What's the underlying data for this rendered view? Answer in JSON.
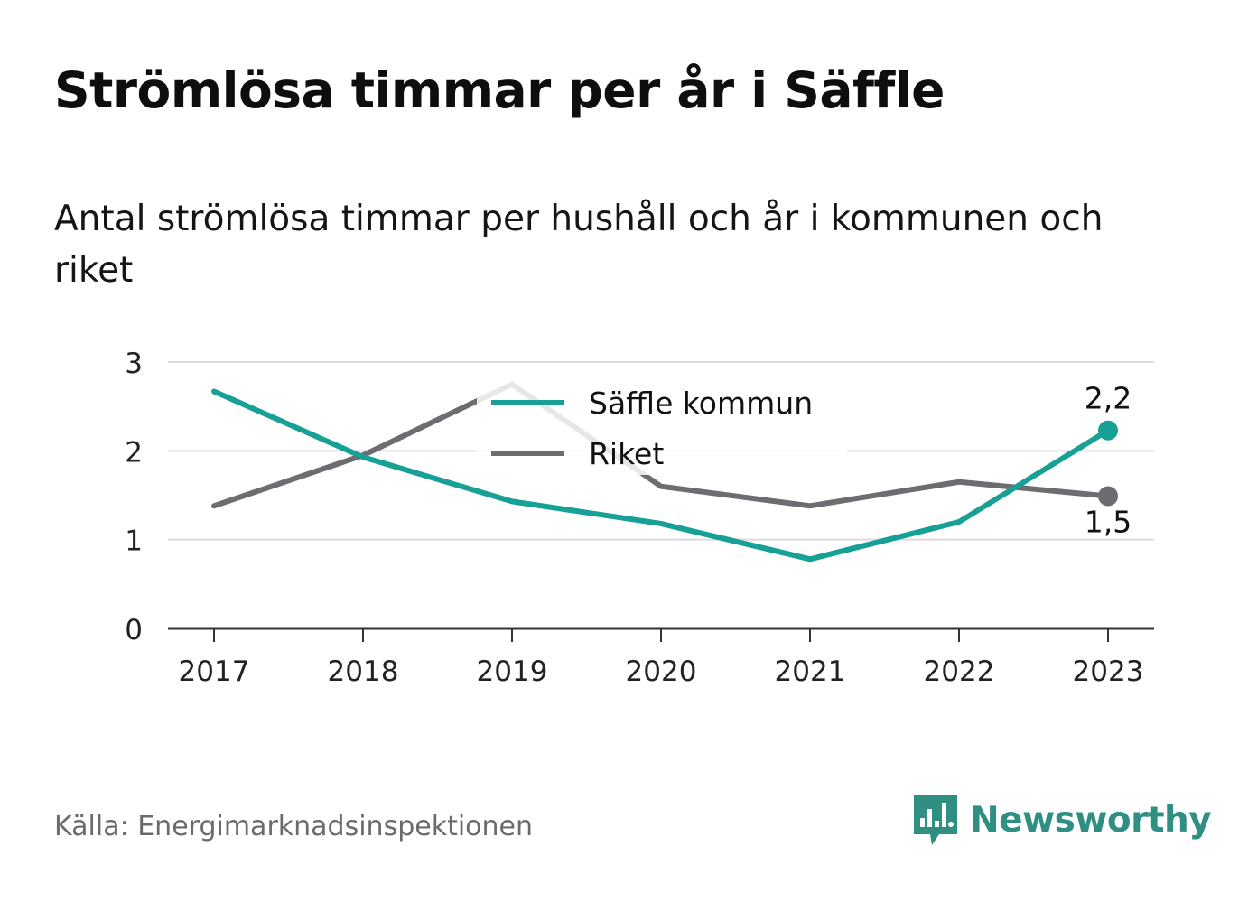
{
  "title": "Strömlösa timmar per år i Säffle",
  "subtitle": "Antal strömlösa timmar per hushåll och år i kommunen och riket",
  "source": "Källa: Energimarknadsinspektionen",
  "brand": {
    "name": "Newsworthy",
    "icon": "newsworthy-logo-icon",
    "color": "#2f8f83"
  },
  "chart_data": {
    "type": "line",
    "x": [
      "2017",
      "2018",
      "2019",
      "2020",
      "2021",
      "2022",
      "2023"
    ],
    "yticks": [
      "0",
      "1",
      "2",
      "3"
    ],
    "ylim": [
      0,
      3
    ],
    "grid": true,
    "legend_position": "top-center",
    "series": [
      {
        "name": "Säffle kommun",
        "color": "#16a096",
        "values": [
          2.67,
          1.93,
          1.43,
          1.18,
          0.78,
          1.2,
          2.23
        ],
        "end_label": "2,2"
      },
      {
        "name": "Riket",
        "color": "#6d6c71",
        "values": [
          1.38,
          1.95,
          2.75,
          1.6,
          1.38,
          1.65,
          1.49
        ],
        "end_label": "1,5"
      }
    ]
  }
}
